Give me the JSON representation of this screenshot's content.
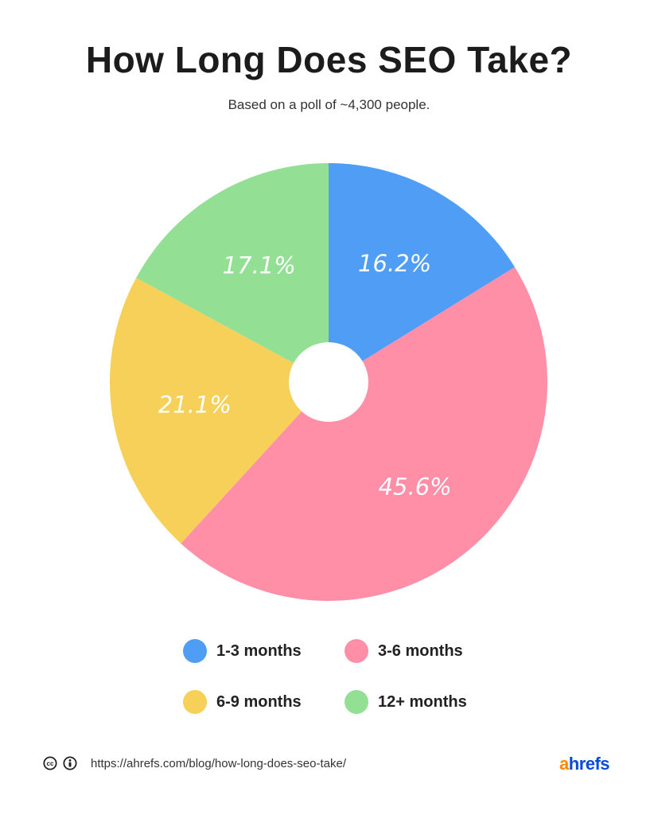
{
  "header": {
    "title": "How Long Does SEO Take?",
    "subtitle": "Based on a poll of ~4,300 people."
  },
  "chart_data": {
    "type": "pie",
    "title": "How Long Does SEO Take?",
    "subtitle": "Based on a poll of ~4,300 people.",
    "categories": [
      "1-3 months",
      "3-6 months",
      "6-9 months",
      "12+ months"
    ],
    "values": [
      16.2,
      45.6,
      21.1,
      17.1
    ],
    "labels": [
      "16.2%",
      "45.6%",
      "21.1%",
      "17.1%"
    ],
    "colors": [
      "#4f9df5",
      "#ff8fa7",
      "#f6d058",
      "#93e095"
    ],
    "donut_hole": true,
    "start_angle": "12 o'clock, clockwise",
    "legend_position": "bottom, 2x2 grid"
  },
  "legend": {
    "items": [
      {
        "label": "1-3 months",
        "color": "#4f9df5"
      },
      {
        "label": "3-6 months",
        "color": "#ff8fa7"
      },
      {
        "label": "6-9 months",
        "color": "#f6d058"
      },
      {
        "label": "12+ months",
        "color": "#93e095"
      }
    ]
  },
  "footer": {
    "license_icons": [
      "creative-commons-icon",
      "attribution-icon"
    ],
    "url": "https://ahrefs.com/blog/how-long-does-seo-take/",
    "logo_a": "a",
    "logo_rest": "hrefs"
  }
}
